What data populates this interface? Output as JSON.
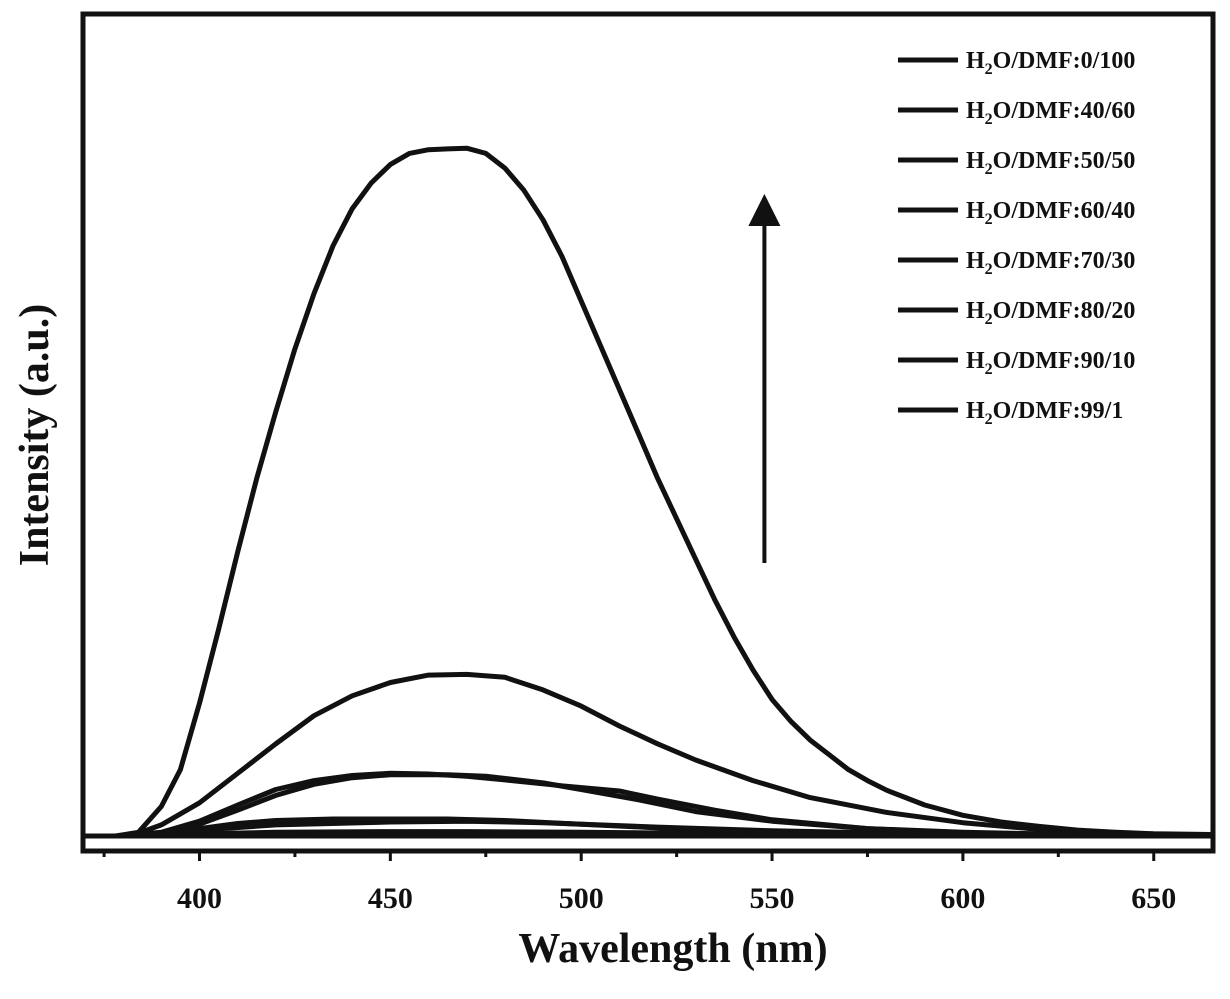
{
  "chart_data": {
    "type": "line",
    "title": "",
    "xlabel": "Wavelength (nm)",
    "ylabel": "Intensity (a.u.)",
    "xlim": [
      370,
      665
    ],
    "ylim": [
      0,
      100
    ],
    "x_major_ticks": [
      400,
      450,
      500,
      550,
      600,
      650
    ],
    "x_minor_step": 25,
    "y_ticks_shown": false,
    "grid": false,
    "legend_position": "top-right",
    "annotations": [
      {
        "type": "arrow",
        "direction": "up",
        "x": 548,
        "y_from": 37,
        "y_to": 87,
        "meaning": "increasing water fraction"
      }
    ],
    "series": [
      {
        "name": "H2O/DMF:0/100",
        "label_main": "H",
        "label_sub": "2",
        "label_rest": "O/DMF:0/100",
        "points": [
          [
            370,
            0
          ],
          [
            380,
            0
          ],
          [
            400,
            0
          ],
          [
            450,
            0
          ],
          [
            500,
            0
          ],
          [
            550,
            0
          ],
          [
            600,
            0
          ],
          [
            665,
            0
          ]
        ]
      },
      {
        "name": "H2O/DMF:40/60",
        "label_main": "H",
        "label_sub": "2",
        "label_rest": "O/DMF:40/60",
        "points": [
          [
            370,
            0
          ],
          [
            385,
            0
          ],
          [
            400,
            0.3
          ],
          [
            420,
            0.5
          ],
          [
            450,
            0.6
          ],
          [
            470,
            0.6
          ],
          [
            500,
            0.5
          ],
          [
            550,
            0.3
          ],
          [
            600,
            0.1
          ],
          [
            665,
            0
          ]
        ]
      },
      {
        "name": "H2O/DMF:50/50",
        "label_main": "H",
        "label_sub": "2",
        "label_rest": "O/DMF:50/50",
        "points": [
          [
            370,
            0
          ],
          [
            385,
            0
          ],
          [
            400,
            0.8
          ],
          [
            420,
            1.5
          ],
          [
            450,
            1.9
          ],
          [
            470,
            2.0
          ],
          [
            490,
            1.8
          ],
          [
            520,
            1.2
          ],
          [
            550,
            0.7
          ],
          [
            600,
            0.2
          ],
          [
            665,
            0
          ]
        ]
      },
      {
        "name": "H2O/DMF:60/40",
        "label_main": "H",
        "label_sub": "2",
        "label_rest": "O/DMF:60/40",
        "points": [
          [
            370,
            0
          ],
          [
            380,
            0
          ],
          [
            390,
            0.2
          ],
          [
            400,
            1.0
          ],
          [
            410,
            1.7
          ],
          [
            420,
            2.1
          ],
          [
            435,
            2.3
          ],
          [
            450,
            2.3
          ],
          [
            465,
            2.3
          ],
          [
            480,
            2.1
          ],
          [
            500,
            1.6
          ],
          [
            520,
            1.1
          ],
          [
            550,
            0.6
          ],
          [
            600,
            0.2
          ],
          [
            665,
            0
          ]
        ]
      },
      {
        "name": "H2O/DMF:70/30",
        "label_main": "H",
        "label_sub": "2",
        "label_rest": "O/DMF:70/30",
        "points": [
          [
            370,
            0
          ],
          [
            380,
            0
          ],
          [
            390,
            0.5
          ],
          [
            400,
            2.0
          ],
          [
            410,
            4.2
          ],
          [
            420,
            6.3
          ],
          [
            430,
            7.5
          ],
          [
            440,
            8.2
          ],
          [
            450,
            8.5
          ],
          [
            460,
            8.4
          ],
          [
            470,
            8.1
          ],
          [
            480,
            7.6
          ],
          [
            495,
            6.8
          ],
          [
            510,
            6.1
          ],
          [
            520,
            5.0
          ],
          [
            535,
            3.5
          ],
          [
            550,
            2.2
          ],
          [
            575,
            1.0
          ],
          [
            600,
            0.5
          ],
          [
            630,
            0.2
          ],
          [
            665,
            0
          ]
        ]
      },
      {
        "name": "H2O/DMF:80/20",
        "label_main": "H",
        "label_sub": "2",
        "label_rest": "O/DMF:80/20",
        "points": [
          [
            370,
            0
          ],
          [
            380,
            0
          ],
          [
            390,
            0.4
          ],
          [
            400,
            1.6
          ],
          [
            410,
            3.5
          ],
          [
            420,
            5.5
          ],
          [
            430,
            7.0
          ],
          [
            440,
            7.9
          ],
          [
            450,
            8.3
          ],
          [
            465,
            8.3
          ],
          [
            475,
            8.1
          ],
          [
            490,
            7.2
          ],
          [
            500,
            6.3
          ],
          [
            515,
            4.9
          ],
          [
            530,
            3.3
          ],
          [
            550,
            2.0
          ],
          [
            575,
            1.0
          ],
          [
            600,
            0.4
          ],
          [
            630,
            0.2
          ],
          [
            665,
            0
          ]
        ]
      },
      {
        "name": "H2O/DMF:90/10",
        "label_main": "H",
        "label_sub": "2",
        "label_rest": "O/DMF:90/10",
        "points": [
          [
            370,
            0
          ],
          [
            382,
            0
          ],
          [
            390,
            1.5
          ],
          [
            400,
            4.5
          ],
          [
            410,
            8.5
          ],
          [
            420,
            12.5
          ],
          [
            430,
            16.3
          ],
          [
            440,
            19.0
          ],
          [
            450,
            20.8
          ],
          [
            460,
            21.8
          ],
          [
            470,
            21.9
          ],
          [
            480,
            21.5
          ],
          [
            490,
            19.8
          ],
          [
            500,
            17.6
          ],
          [
            510,
            14.9
          ],
          [
            520,
            12.5
          ],
          [
            530,
            10.3
          ],
          [
            545,
            7.5
          ],
          [
            560,
            5.2
          ],
          [
            580,
            3.2
          ],
          [
            600,
            1.8
          ],
          [
            620,
            0.9
          ],
          [
            640,
            0.4
          ],
          [
            665,
            0
          ]
        ]
      },
      {
        "name": "H2O/DMF:99/1",
        "label_main": "H",
        "label_sub": "2",
        "label_rest": "O/DMF:99/1",
        "points": [
          [
            370,
            0
          ],
          [
            378,
            0
          ],
          [
            384,
            0.5
          ],
          [
            390,
            4.0
          ],
          [
            395,
            9.0
          ],
          [
            400,
            18.0
          ],
          [
            405,
            28.0
          ],
          [
            410,
            38.5
          ],
          [
            415,
            48.5
          ],
          [
            420,
            57.5
          ],
          [
            425,
            66.0
          ],
          [
            430,
            73.5
          ],
          [
            435,
            80.0
          ],
          [
            440,
            85.0
          ],
          [
            445,
            88.5
          ],
          [
            450,
            91.0
          ],
          [
            455,
            92.5
          ],
          [
            460,
            93.0
          ],
          [
            465,
            93.1
          ],
          [
            470,
            93.2
          ],
          [
            475,
            92.5
          ],
          [
            480,
            90.5
          ],
          [
            485,
            87.5
          ],
          [
            490,
            83.5
          ],
          [
            495,
            78.5
          ],
          [
            500,
            72.5
          ],
          [
            505,
            66.5
          ],
          [
            510,
            60.5
          ],
          [
            515,
            54.5
          ],
          [
            520,
            48.5
          ],
          [
            525,
            43.0
          ],
          [
            530,
            37.5
          ],
          [
            535,
            32.0
          ],
          [
            540,
            27.0
          ],
          [
            545,
            22.5
          ],
          [
            550,
            18.5
          ],
          [
            555,
            15.5
          ],
          [
            560,
            13.0
          ],
          [
            565,
            11.0
          ],
          [
            570,
            9.0
          ],
          [
            575,
            7.5
          ],
          [
            580,
            6.2
          ],
          [
            590,
            4.2
          ],
          [
            600,
            2.8
          ],
          [
            610,
            1.9
          ],
          [
            620,
            1.3
          ],
          [
            630,
            0.8
          ],
          [
            640,
            0.5
          ],
          [
            650,
            0.3
          ],
          [
            665,
            0.2
          ]
        ]
      }
    ]
  }
}
